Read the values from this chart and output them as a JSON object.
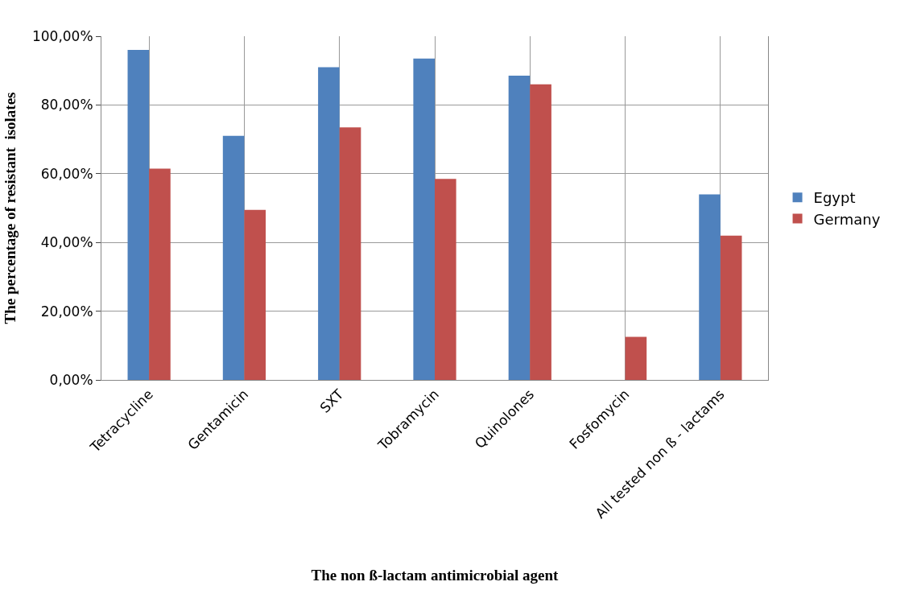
{
  "chart_data": {
    "type": "bar",
    "xlabel": "The non ß-lactam antimicrobial agent",
    "ylabel": "The percentage of resistant  isolates",
    "categories": [
      "Tetracycline",
      "Gentamicin",
      "SXT",
      "Tobramycin",
      "Quinolones",
      "Fosfomycin",
      "All tested non ß - lactams"
    ],
    "series": [
      {
        "name": "Egypt",
        "color": "#4f81bd",
        "values": [
          96,
          71,
          91,
          93.5,
          88.5,
          0,
          54
        ]
      },
      {
        "name": "Germany",
        "color": "#c0504d",
        "values": [
          61.5,
          49.5,
          73.5,
          58.5,
          86,
          12.5,
          42
        ]
      }
    ],
    "ylim": [
      0,
      100
    ],
    "yticks": [
      {
        "value": 0,
        "label": "0,00%"
      },
      {
        "value": 20,
        "label": "20,00%"
      },
      {
        "value": 40,
        "label": "40,00%"
      },
      {
        "value": 60,
        "label": "60,00%"
      },
      {
        "value": 80,
        "label": "80,00%"
      },
      {
        "value": 100,
        "label": "100,00%"
      }
    ],
    "grid": true,
    "legend": "right"
  }
}
